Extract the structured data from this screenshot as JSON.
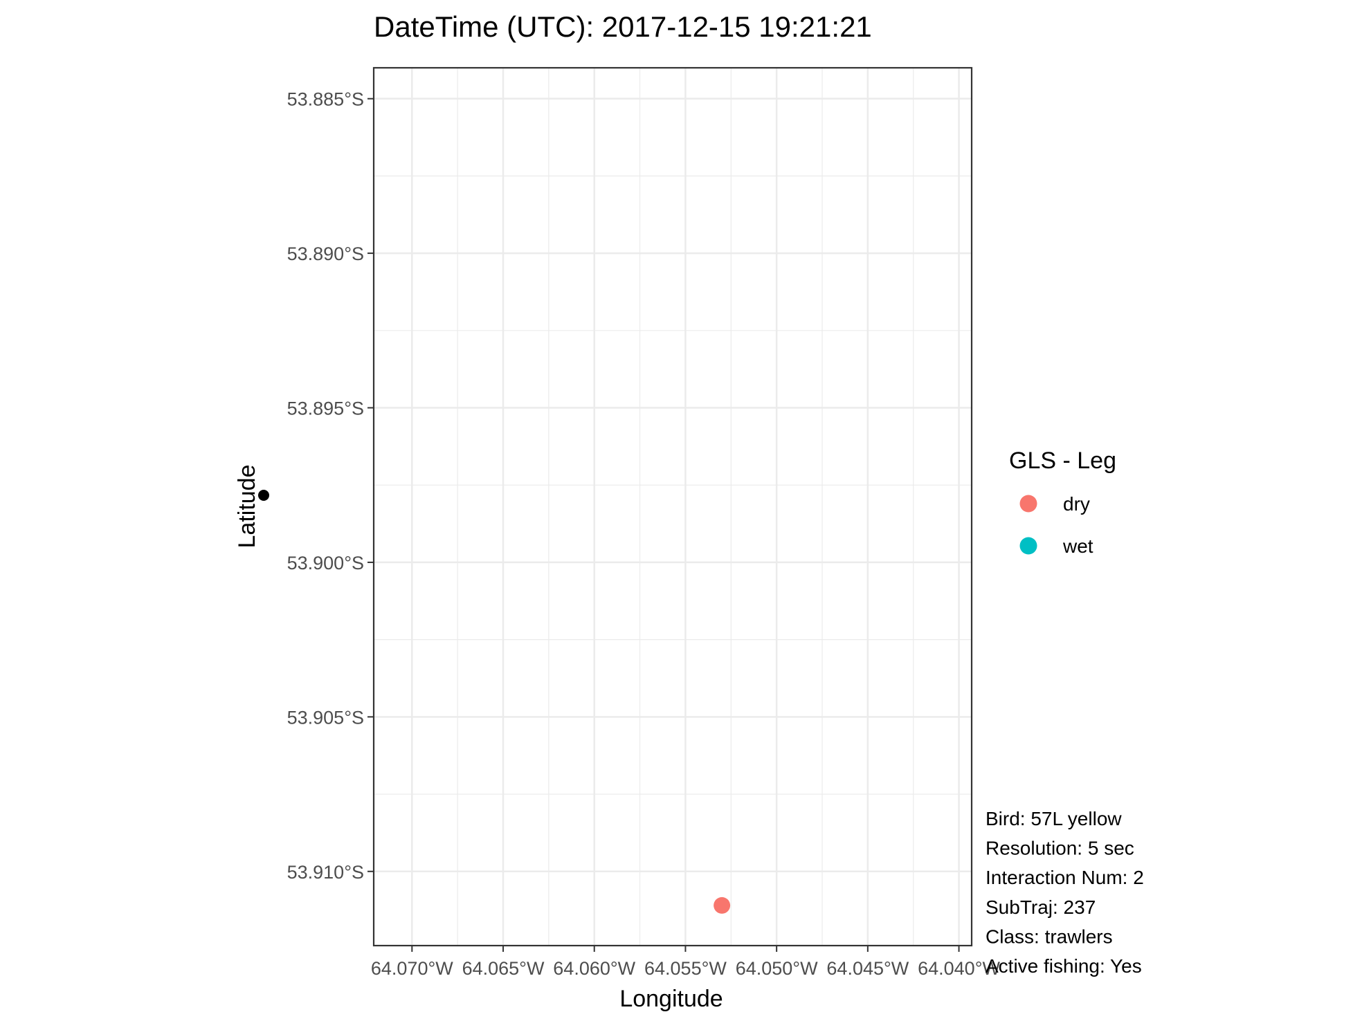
{
  "chart_data": {
    "type": "scatter",
    "title": "DateTime (UTC): 2017-12-15 19:21:21",
    "xlabel": "Longitude",
    "ylabel": "Latitude",
    "xlim": [
      -64.0721,
      -64.0393
    ],
    "ylim": [
      -53.9124,
      -53.884
    ],
    "x_ticks": [
      -64.07,
      -64.065,
      -64.06,
      -64.055,
      -64.05,
      -64.045,
      -64.04
    ],
    "x_tick_labels": [
      "64.070°W",
      "64.065°W",
      "64.060°W",
      "64.055°W",
      "64.050°W",
      "64.045°W",
      "64.040°W"
    ],
    "y_ticks": [
      -53.885,
      -53.89,
      -53.895,
      -53.9,
      -53.905,
      -53.91
    ],
    "y_tick_labels": [
      "53.885°S",
      "53.890°S",
      "53.895°S",
      "53.900°S",
      "53.905°S",
      "53.910°S"
    ],
    "grid": true,
    "series": [
      {
        "name": "dry",
        "color": "#F8766D",
        "points": [
          {
            "x": -64.053,
            "y": -53.9111
          }
        ]
      },
      {
        "name": "wet",
        "color": "#00BFC4",
        "points": []
      }
    ],
    "legend": {
      "title": "GLS - Leg",
      "position": "right",
      "entries": [
        {
          "label": "dry",
          "color": "#F8766D"
        },
        {
          "label": "wet",
          "color": "#00BFC4"
        }
      ]
    },
    "annotations": [
      "Bird: 57L yellow",
      "Resolution: 5 sec",
      "Interaction Num: 2",
      "SubTraj: 237",
      "Class: trawlers",
      "Active fishing: Yes"
    ]
  }
}
